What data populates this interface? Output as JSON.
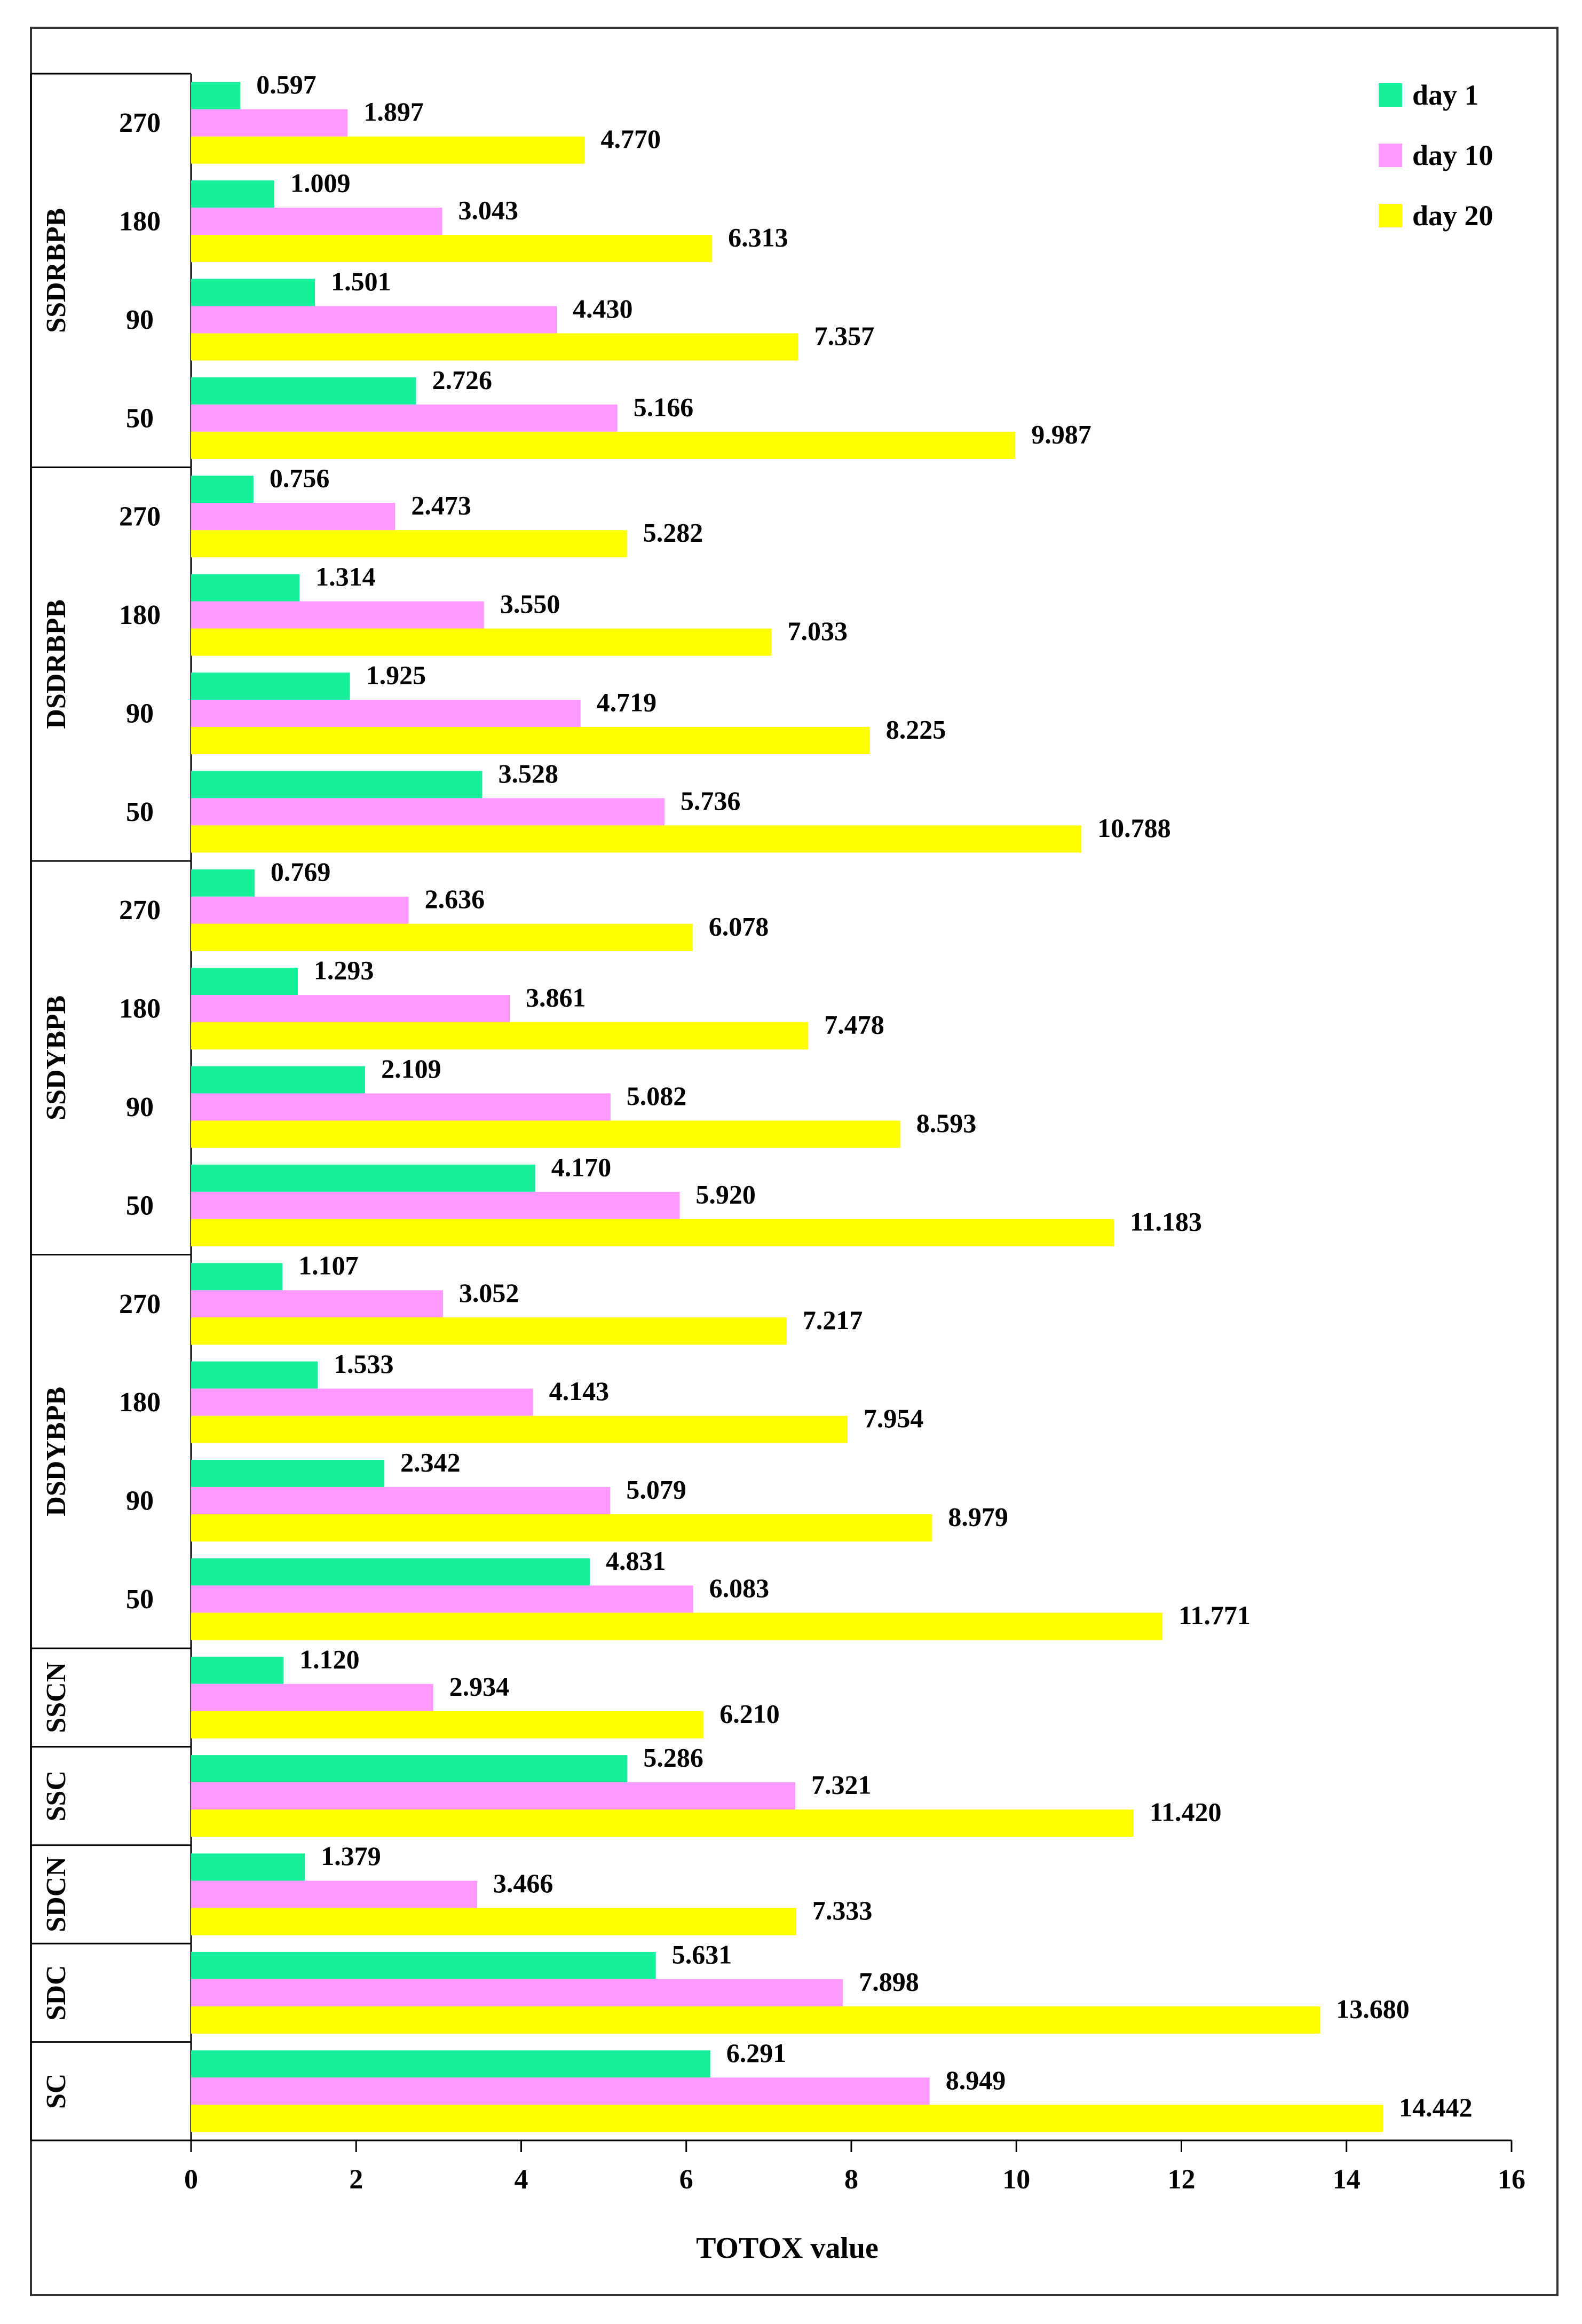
{
  "chart_data": {
    "type": "bar",
    "orientation": "horizontal",
    "title": "",
    "xlabel": "TOTOX value",
    "ylabel": "",
    "xlim": [
      0,
      16
    ],
    "x_ticks": [
      "0",
      "2",
      "4",
      "6",
      "8",
      "10",
      "12",
      "14",
      "16"
    ],
    "grid": false,
    "legend_position": "top-right",
    "series": [
      {
        "name": "day 1",
        "color": "#17f09a"
      },
      {
        "name": "day 10",
        "color": "#ff99ff"
      },
      {
        "name": "day 20",
        "color": "#ffff00"
      }
    ],
    "groups": [
      {
        "name": "SSDRBPB",
        "rows": [
          {
            "label": "270",
            "values": [
              0.597,
              1.897,
              4.77
            ],
            "value_labels": [
              "0.597",
              "1.897",
              "4.770"
            ]
          },
          {
            "label": "180",
            "values": [
              1.009,
              3.043,
              6.313
            ],
            "value_labels": [
              "1.009",
              "3.043",
              "6.313"
            ]
          },
          {
            "label": "90",
            "values": [
              1.501,
              4.43,
              7.357
            ],
            "value_labels": [
              "1.501",
              "4.430",
              "7.357"
            ]
          },
          {
            "label": "50",
            "values": [
              2.726,
              5.166,
              9.987
            ],
            "value_labels": [
              "2.726",
              "5.166",
              "9.987"
            ]
          }
        ]
      },
      {
        "name": "DSDRBPB",
        "rows": [
          {
            "label": "270",
            "values": [
              0.756,
              2.473,
              5.282
            ],
            "value_labels": [
              "0.756",
              "2.473",
              "5.282"
            ]
          },
          {
            "label": "180",
            "values": [
              1.314,
              3.55,
              7.033
            ],
            "value_labels": [
              "1.314",
              "3.550",
              "7.033"
            ]
          },
          {
            "label": "90",
            "values": [
              1.925,
              4.719,
              8.225
            ],
            "value_labels": [
              "1.925",
              "4.719",
              "8.225"
            ]
          },
          {
            "label": "50",
            "values": [
              3.528,
              5.736,
              10.788
            ],
            "value_labels": [
              "3.528",
              "5.736",
              "10.788"
            ]
          }
        ]
      },
      {
        "name": "SSDYBPB",
        "rows": [
          {
            "label": "270",
            "values": [
              0.769,
              2.636,
              6.078
            ],
            "value_labels": [
              "0.769",
              "2.636",
              "6.078"
            ]
          },
          {
            "label": "180",
            "values": [
              1.293,
              3.861,
              7.478
            ],
            "value_labels": [
              "1.293",
              "3.861",
              "7.478"
            ]
          },
          {
            "label": "90",
            "values": [
              2.109,
              5.082,
              8.593
            ],
            "value_labels": [
              "2.109",
              "5.082",
              "8.593"
            ]
          },
          {
            "label": "50",
            "values": [
              4.17,
              5.92,
              11.183
            ],
            "value_labels": [
              "4.170",
              "5.920",
              "11.183"
            ]
          }
        ]
      },
      {
        "name": "DSDYBPB",
        "rows": [
          {
            "label": "270",
            "values": [
              1.107,
              3.052,
              7.217
            ],
            "value_labels": [
              "1.107",
              "3.052",
              "7.217"
            ]
          },
          {
            "label": "180",
            "values": [
              1.533,
              4.143,
              7.954
            ],
            "value_labels": [
              "1.533",
              "4.143",
              "7.954"
            ]
          },
          {
            "label": "90",
            "values": [
              2.342,
              5.079,
              8.979
            ],
            "value_labels": [
              "2.342",
              "5.079",
              "8.979"
            ]
          },
          {
            "label": "50",
            "values": [
              4.831,
              6.083,
              11.771
            ],
            "value_labels": [
              "4.831",
              "6.083",
              "11.771"
            ]
          }
        ]
      },
      {
        "name": "SSCN",
        "rows": [
          {
            "label": "",
            "values": [
              1.12,
              2.934,
              6.21
            ],
            "value_labels": [
              "1.120",
              "2.934",
              "6.210"
            ]
          }
        ]
      },
      {
        "name": "SSC",
        "rows": [
          {
            "label": "",
            "values": [
              5.286,
              7.321,
              11.42
            ],
            "value_labels": [
              "5.286",
              "7.321",
              "11.420"
            ]
          }
        ]
      },
      {
        "name": "SDCN",
        "rows": [
          {
            "label": "",
            "values": [
              1.379,
              3.466,
              7.333
            ],
            "value_labels": [
              "1.379",
              "3.466",
              "7.333"
            ]
          }
        ]
      },
      {
        "name": "SDC",
        "rows": [
          {
            "label": "",
            "values": [
              5.631,
              7.898,
              13.68
            ],
            "value_labels": [
              "5.631",
              "7.898",
              "13.680"
            ]
          }
        ]
      },
      {
        "name": "SC",
        "rows": [
          {
            "label": "",
            "values": [
              6.291,
              8.949,
              14.442
            ],
            "value_labels": [
              "6.291",
              "8.949",
              "14.442"
            ]
          }
        ]
      }
    ]
  }
}
